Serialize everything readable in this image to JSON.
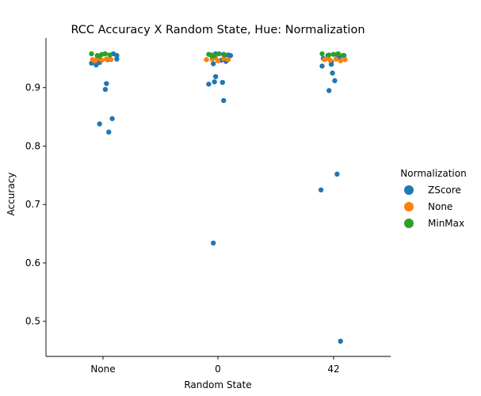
{
  "chart_data": {
    "type": "scatter",
    "title": "RCC Accuracy X Random State, Hue: Normalization",
    "xlabel": "Random State",
    "ylabel": "Accuracy",
    "categories": [
      "None",
      "0",
      "42"
    ],
    "ylim": [
      0.44,
      0.985
    ],
    "yticks": [
      0.5,
      0.6,
      0.7,
      0.8,
      0.9
    ],
    "ytick_labels": [
      "0.5",
      "0.6",
      "0.7",
      "0.8",
      "0.9"
    ],
    "grid": false,
    "legend": {
      "title": "Normalization",
      "placement": "right",
      "entries": [
        "ZScore",
        "None",
        "MinMax"
      ]
    },
    "series": [
      {
        "name": "ZScore",
        "color": "#1f77b4",
        "points": [
          {
            "x": "None",
            "offset": -0.1,
            "y": 0.942
          },
          {
            "x": "None",
            "offset": -0.06,
            "y": 0.939
          },
          {
            "x": "None",
            "offset": -0.03,
            "y": 0.943
          },
          {
            "x": "None",
            "offset": 0.04,
            "y": 0.948
          },
          {
            "x": "None",
            "offset": 0.09,
            "y": 0.958
          },
          {
            "x": "None",
            "offset": 0.12,
            "y": 0.955
          },
          {
            "x": "None",
            "offset": 0.12,
            "y": 0.949
          },
          {
            "x": "None",
            "offset": 0.03,
            "y": 0.907
          },
          {
            "x": "None",
            "offset": 0.02,
            "y": 0.897
          },
          {
            "x": "None",
            "offset": -0.03,
            "y": 0.838
          },
          {
            "x": "None",
            "offset": 0.08,
            "y": 0.847
          },
          {
            "x": "None",
            "offset": 0.05,
            "y": 0.824
          },
          {
            "x": "0",
            "offset": -0.06,
            "y": 0.956
          },
          {
            "x": "0",
            "offset": -0.02,
            "y": 0.958
          },
          {
            "x": "0",
            "offset": 0.05,
            "y": 0.957
          },
          {
            "x": "0",
            "offset": 0.09,
            "y": 0.956
          },
          {
            "x": "0",
            "offset": 0.11,
            "y": 0.955
          },
          {
            "x": "0",
            "offset": 0.03,
            "y": 0.947
          },
          {
            "x": "0",
            "offset": 0.07,
            "y": 0.945
          },
          {
            "x": "0",
            "offset": -0.04,
            "y": 0.941
          },
          {
            "x": "0",
            "offset": -0.02,
            "y": 0.919
          },
          {
            "x": "0",
            "offset": -0.03,
            "y": 0.91
          },
          {
            "x": "0",
            "offset": -0.08,
            "y": 0.906
          },
          {
            "x": "0",
            "offset": 0.04,
            "y": 0.909
          },
          {
            "x": "0",
            "offset": 0.05,
            "y": 0.878
          },
          {
            "x": "0",
            "offset": -0.04,
            "y": 0.634
          },
          {
            "x": "42",
            "offset": -0.09,
            "y": 0.95
          },
          {
            "x": "42",
            "offset": -0.05,
            "y": 0.955
          },
          {
            "x": "42",
            "offset": 0.03,
            "y": 0.957
          },
          {
            "x": "42",
            "offset": 0.05,
            "y": 0.951
          },
          {
            "x": "42",
            "offset": 0.09,
            "y": 0.955
          },
          {
            "x": "42",
            "offset": -0.02,
            "y": 0.944
          },
          {
            "x": "42",
            "offset": -0.02,
            "y": 0.94
          },
          {
            "x": "42",
            "offset": -0.1,
            "y": 0.937
          },
          {
            "x": "42",
            "offset": -0.01,
            "y": 0.925
          },
          {
            "x": "42",
            "offset": 0.01,
            "y": 0.912
          },
          {
            "x": "42",
            "offset": -0.04,
            "y": 0.895
          },
          {
            "x": "42",
            "offset": 0.03,
            "y": 0.752
          },
          {
            "x": "42",
            "offset": -0.11,
            "y": 0.725
          },
          {
            "x": "42",
            "offset": 0.06,
            "y": 0.466
          }
        ]
      },
      {
        "name": "None",
        "color": "#ff7f0e",
        "points": [
          {
            "x": "None",
            "offset": -0.09,
            "y": 0.948
          },
          {
            "x": "None",
            "offset": -0.05,
            "y": 0.95
          },
          {
            "x": "None",
            "offset": -0.01,
            "y": 0.947
          },
          {
            "x": "None",
            "offset": 0.03,
            "y": 0.949
          },
          {
            "x": "None",
            "offset": 0.07,
            "y": 0.948
          },
          {
            "x": "None",
            "offset": -0.07,
            "y": 0.946
          },
          {
            "x": "0",
            "offset": -0.1,
            "y": 0.948
          },
          {
            "x": "0",
            "offset": -0.05,
            "y": 0.949
          },
          {
            "x": "0",
            "offset": 0.0,
            "y": 0.946
          },
          {
            "x": "0",
            "offset": 0.05,
            "y": 0.95
          },
          {
            "x": "0",
            "offset": 0.09,
            "y": 0.948
          },
          {
            "x": "0",
            "offset": -0.02,
            "y": 0.951
          },
          {
            "x": "42",
            "offset": -0.08,
            "y": 0.948
          },
          {
            "x": "42",
            "offset": -0.03,
            "y": 0.947
          },
          {
            "x": "42",
            "offset": 0.02,
            "y": 0.949
          },
          {
            "x": "42",
            "offset": 0.06,
            "y": 0.946
          },
          {
            "x": "42",
            "offset": 0.1,
            "y": 0.948
          },
          {
            "x": "42",
            "offset": -0.05,
            "y": 0.95
          }
        ]
      },
      {
        "name": "MinMax",
        "color": "#2ca02c",
        "points": [
          {
            "x": "None",
            "offset": -0.1,
            "y": 0.958
          },
          {
            "x": "None",
            "offset": -0.05,
            "y": 0.955
          },
          {
            "x": "None",
            "offset": -0.01,
            "y": 0.957
          },
          {
            "x": "None",
            "offset": 0.02,
            "y": 0.958
          },
          {
            "x": "None",
            "offset": 0.06,
            "y": 0.956
          },
          {
            "x": "None",
            "offset": -0.03,
            "y": 0.954
          },
          {
            "x": "0",
            "offset": -0.08,
            "y": 0.957
          },
          {
            "x": "0",
            "offset": -0.03,
            "y": 0.955
          },
          {
            "x": "0",
            "offset": 0.01,
            "y": 0.958
          },
          {
            "x": "0",
            "offset": 0.06,
            "y": 0.956
          },
          {
            "x": "0",
            "offset": -0.05,
            "y": 0.954
          },
          {
            "x": "42",
            "offset": -0.1,
            "y": 0.958
          },
          {
            "x": "42",
            "offset": -0.04,
            "y": 0.956
          },
          {
            "x": "42",
            "offset": 0.0,
            "y": 0.957
          },
          {
            "x": "42",
            "offset": 0.04,
            "y": 0.958
          },
          {
            "x": "42",
            "offset": 0.08,
            "y": 0.955
          }
        ]
      }
    ]
  }
}
